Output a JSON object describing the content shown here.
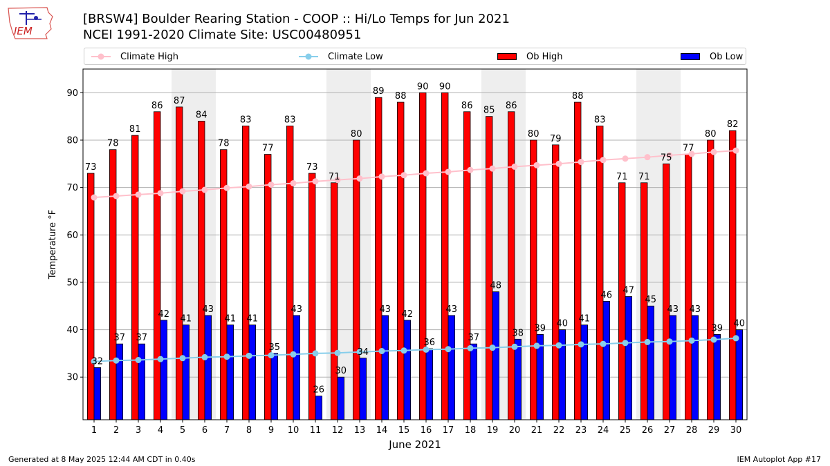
{
  "header": {
    "title_line1": "[BRSW4] Boulder Rearing Station - COOP :: Hi/Lo Temps for Jun 2021",
    "title_line2": "NCEI 1991-2020 Climate Site: USC00480951",
    "logo_text": "IEM"
  },
  "legend": {
    "climate_high": "Climate High",
    "climate_low": "Climate Low",
    "ob_high": "Ob High",
    "ob_low": "Ob Low"
  },
  "footer": {
    "left": "Generated at 8 May 2025 12:44 AM CDT in 0.40s",
    "right": "IEM Autoplot App #17"
  },
  "colors": {
    "ob_high": "#ff0000",
    "ob_low": "#0000ff",
    "climate_high": "#ffc0cb",
    "climate_low": "#87ceeb",
    "weekend_shade": "#eeeeee",
    "grid": "#b0b0b0"
  },
  "chart_data": {
    "type": "bar",
    "xlabel": "June 2021",
    "ylabel": "Temperature °F",
    "ylim": [
      21,
      95
    ],
    "yticks": [
      30,
      40,
      50,
      60,
      70,
      80,
      90
    ],
    "grid": "horizontal",
    "legend_position": "top",
    "categories": [
      "1",
      "2",
      "3",
      "4",
      "5",
      "6",
      "7",
      "8",
      "9",
      "10",
      "11",
      "12",
      "13",
      "14",
      "15",
      "16",
      "17",
      "18",
      "19",
      "20",
      "21",
      "22",
      "23",
      "24",
      "25",
      "26",
      "27",
      "28",
      "29",
      "30"
    ],
    "shaded_weekend_days": [
      [
        5,
        6
      ],
      [
        12,
        13
      ],
      [
        19,
        20
      ],
      [
        26,
        27
      ]
    ],
    "series": [
      {
        "name": "Ob High",
        "type": "bar",
        "values": [
          73,
          78,
          81,
          86,
          87,
          84,
          78,
          83,
          77,
          83,
          73,
          71,
          80,
          89,
          88,
          90,
          90,
          86,
          85,
          86,
          80,
          79,
          88,
          83,
          71,
          71,
          75,
          77,
          80,
          82
        ]
      },
      {
        "name": "Ob Low",
        "type": "bar",
        "values": [
          32,
          37,
          37,
          42,
          41,
          43,
          41,
          41,
          35,
          43,
          26,
          30,
          34,
          43,
          42,
          36,
          43,
          37,
          48,
          38,
          39,
          40,
          41,
          46,
          47,
          45,
          43,
          43,
          39,
          40
        ]
      },
      {
        "name": "Climate High",
        "type": "line",
        "values": [
          67.9,
          68.2,
          68.5,
          68.8,
          69.2,
          69.5,
          69.9,
          70.2,
          70.6,
          70.9,
          71.3,
          71.6,
          71.9,
          72.3,
          72.6,
          73.0,
          73.3,
          73.7,
          74.0,
          74.4,
          74.7,
          75.0,
          75.4,
          75.8,
          76.1,
          76.4,
          76.8,
          77.1,
          77.5,
          77.8
        ]
      },
      {
        "name": "Climate Low",
        "type": "line",
        "values": [
          33.3,
          33.5,
          33.6,
          33.8,
          34.0,
          34.2,
          34.3,
          34.5,
          34.6,
          34.8,
          35.0,
          35.1,
          35.3,
          35.5,
          35.6,
          35.8,
          35.9,
          36.1,
          36.2,
          36.4,
          36.6,
          36.7,
          36.9,
          37.0,
          37.2,
          37.4,
          37.5,
          37.7,
          37.9,
          38.2
        ]
      }
    ]
  }
}
